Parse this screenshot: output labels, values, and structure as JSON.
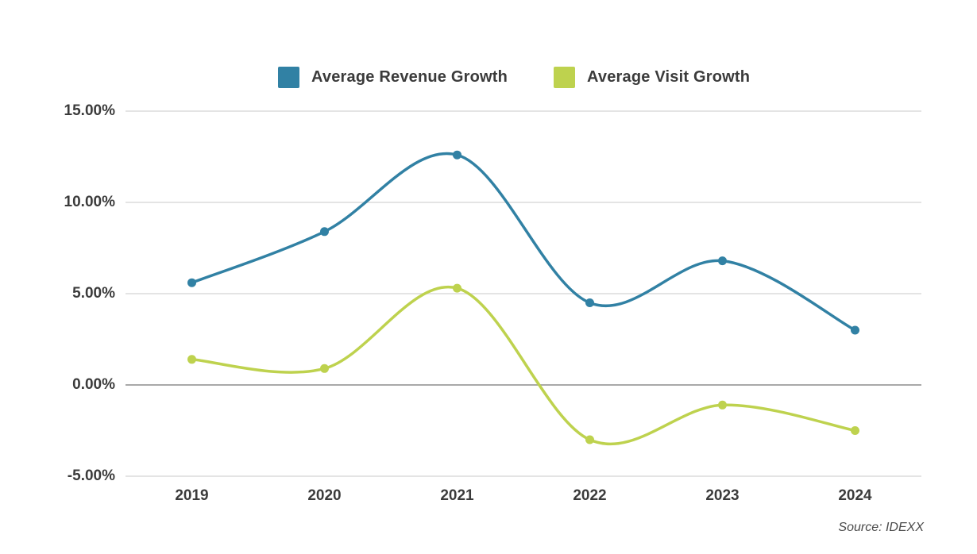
{
  "source_text": "Source: IDEXX",
  "chart_data": {
    "type": "line",
    "title": "",
    "xlabel": "",
    "ylabel": "",
    "categories": [
      "2019",
      "2020",
      "2021",
      "2022",
      "2023",
      "2024"
    ],
    "series": [
      {
        "name": "Average Revenue Growth",
        "color": "#3181a4",
        "values": [
          5.6,
          8.4,
          12.6,
          4.5,
          6.8,
          3.0
        ]
      },
      {
        "name": "Average Visit Growth",
        "color": "#bed24e",
        "values": [
          1.4,
          0.9,
          5.3,
          -3.0,
          -1.1,
          -2.5
        ]
      }
    ],
    "ylim": [
      -5,
      15
    ],
    "ytick_step": 5,
    "ytick_labels": [
      "15.00%",
      "10.00%",
      "5.00%",
      "0.00%",
      "-5.00%"
    ],
    "ytick_values": [
      15,
      10,
      5,
      0,
      -5
    ],
    "grid": true,
    "grid_color": "#e4e4e4",
    "zero_line_color": "#a9a9a9",
    "text_color": "#3b3b3b",
    "background_color": "#ffffff",
    "legend_position": "top",
    "line_width": 3.5,
    "marker_radius": 5.5
  }
}
